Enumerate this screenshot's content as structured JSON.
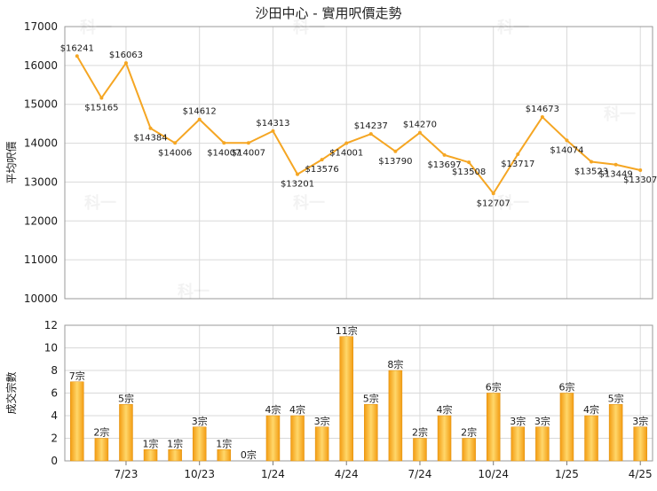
{
  "chart_data": [
    {
      "type": "line",
      "title": "沙田中心 - 實用呎價走勢",
      "ylabel": "平均呎價",
      "ylim": [
        10000,
        17000
      ],
      "yticks": [
        10000,
        11000,
        12000,
        13000,
        14000,
        15000,
        16000,
        17000
      ],
      "grid": true,
      "line_color": "#F5A623",
      "values": [
        16241,
        15165,
        16063,
        14384,
        14006,
        14612,
        14007,
        14007,
        14313,
        13201,
        13576,
        14001,
        14237,
        13790,
        14270,
        13697,
        13508,
        12707,
        13717,
        14673,
        14074,
        13523,
        13449,
        13307
      ],
      "labels": [
        "$16241",
        "$15165",
        "$16063",
        "$14384",
        "$14006",
        "$14612",
        "$14007",
        "$14007",
        "$14313",
        "$13201",
        "$13576",
        "$14001",
        "$14237",
        "$13790",
        "$14270",
        "$13697",
        "$13508",
        "$12707",
        "$13717",
        "$14673",
        "$14074",
        "$13523",
        "$13449",
        "$13307"
      ]
    },
    {
      "type": "bar",
      "ylabel": "成交宗數",
      "ylim": [
        0,
        12
      ],
      "yticks": [
        0,
        2,
        4,
        6,
        8,
        10,
        12
      ],
      "grid": true,
      "bar_color": "#F5A623",
      "values": [
        7,
        2,
        5,
        1,
        1,
        3,
        1,
        0,
        4,
        4,
        3,
        11,
        5,
        8,
        2,
        4,
        2,
        6,
        3,
        3,
        6,
        4,
        5,
        3
      ],
      "labels": [
        "7宗",
        "2宗",
        "5宗",
        "1宗",
        "1宗",
        "3宗",
        "1宗",
        "0宗",
        "4宗",
        "4宗",
        "3宗",
        "11宗",
        "5宗",
        "8宗",
        "2宗",
        "4宗",
        "2宗",
        "6宗",
        "3宗",
        "3宗",
        "6宗",
        "4宗",
        "5宗",
        "3宗"
      ],
      "xticks": [
        {
          "label": "7/23",
          "index": 2
        },
        {
          "label": "10/23",
          "index": 5
        },
        {
          "label": "1/24",
          "index": 8
        },
        {
          "label": "4/24",
          "index": 11
        },
        {
          "label": "7/24",
          "index": 14
        },
        {
          "label": "10/24",
          "index": 17
        },
        {
          "label": "1/25",
          "index": 20
        },
        {
          "label": "4/25",
          "index": 23
        }
      ]
    }
  ],
  "watermark": "科一"
}
